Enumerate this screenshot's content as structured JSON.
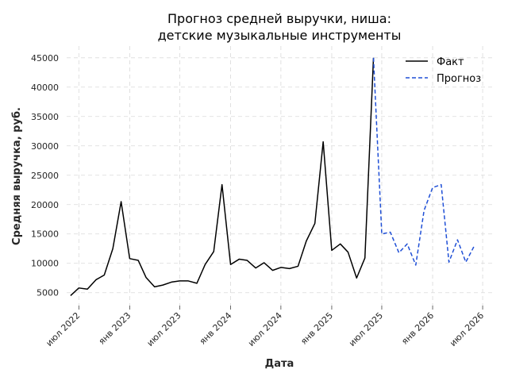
{
  "chart_data": {
    "type": "line",
    "title": [
      "Прогноз средней выручки, ниша:",
      "детские музыкальные инструменты"
    ],
    "xlabel": "Дата",
    "ylabel": "Средняя выручка, руб.",
    "ylim": [
      2800,
      47000
    ],
    "xlim": [
      "2022-05-18",
      "2026-08-10"
    ],
    "yticks": [
      5000,
      10000,
      15000,
      20000,
      25000,
      30000,
      35000,
      40000,
      45000
    ],
    "xticks": [
      {
        "date": "2022-07-01",
        "label": "июл 2022"
      },
      {
        "date": "2023-01-01",
        "label": "янв 2023"
      },
      {
        "date": "2023-07-01",
        "label": "июл 2023"
      },
      {
        "date": "2024-01-01",
        "label": "янв 2024"
      },
      {
        "date": "2024-07-01",
        "label": "июл 2024"
      },
      {
        "date": "2025-01-01",
        "label": "янв 2025"
      },
      {
        "date": "2025-07-01",
        "label": "июл 2025"
      },
      {
        "date": "2026-01-01",
        "label": "янв 2026"
      },
      {
        "date": "2026-07-01",
        "label": "июл 2026"
      }
    ],
    "grid": true,
    "legend_position": "top-right",
    "series": [
      {
        "name": "Факт",
        "color": "#000000",
        "style": "solid",
        "points": [
          [
            "2022-06-01",
            4500
          ],
          [
            "2022-07-01",
            5800
          ],
          [
            "2022-08-01",
            5600
          ],
          [
            "2022-09-01",
            7200
          ],
          [
            "2022-10-01",
            8000
          ],
          [
            "2022-11-01",
            12500
          ],
          [
            "2022-12-01",
            20500
          ],
          [
            "2023-01-01",
            10800
          ],
          [
            "2023-02-01",
            10500
          ],
          [
            "2023-03-01",
            7600
          ],
          [
            "2023-04-01",
            6000
          ],
          [
            "2023-05-01",
            6300
          ],
          [
            "2023-06-01",
            6800
          ],
          [
            "2023-07-01",
            7000
          ],
          [
            "2023-08-01",
            7000
          ],
          [
            "2023-09-01",
            6600
          ],
          [
            "2023-10-01",
            9800
          ],
          [
            "2023-11-01",
            12000
          ],
          [
            "2023-12-01",
            23400
          ],
          [
            "2024-01-01",
            9800
          ],
          [
            "2024-02-01",
            10700
          ],
          [
            "2024-03-01",
            10500
          ],
          [
            "2024-04-01",
            9200
          ],
          [
            "2024-05-01",
            10100
          ],
          [
            "2024-06-01",
            8800
          ],
          [
            "2024-07-01",
            9300
          ],
          [
            "2024-08-01",
            9100
          ],
          [
            "2024-09-01",
            9500
          ],
          [
            "2024-10-01",
            13800
          ],
          [
            "2024-11-01",
            16800
          ],
          [
            "2024-12-01",
            30700
          ],
          [
            "2025-01-01",
            12200
          ],
          [
            "2025-02-01",
            13300
          ],
          [
            "2025-03-01",
            11900
          ],
          [
            "2025-04-01",
            7500
          ],
          [
            "2025-05-01",
            10900
          ],
          [
            "2025-06-01",
            45000
          ]
        ]
      },
      {
        "name": "Прогноз",
        "color": "#1f4fd6",
        "style": "dashed",
        "points": [
          [
            "2025-06-01",
            45000
          ],
          [
            "2025-07-01",
            15000
          ],
          [
            "2025-08-01",
            15300
          ],
          [
            "2025-09-01",
            11800
          ],
          [
            "2025-10-01",
            13300
          ],
          [
            "2025-11-01",
            9700
          ],
          [
            "2025-12-01",
            19000
          ],
          [
            "2026-01-01",
            22900
          ],
          [
            "2026-02-01",
            23400
          ],
          [
            "2026-03-01",
            10200
          ],
          [
            "2026-04-01",
            14000
          ],
          [
            "2026-05-01",
            10200
          ],
          [
            "2026-06-01",
            13000
          ]
        ]
      }
    ]
  }
}
